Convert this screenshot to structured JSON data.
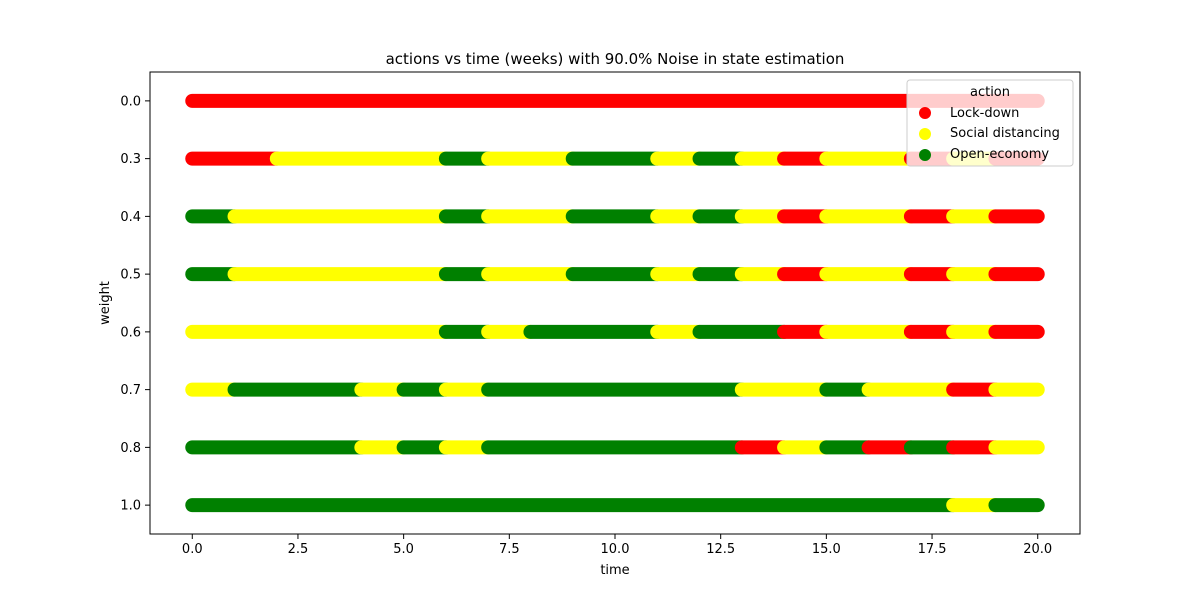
{
  "chart_data": {
    "type": "scatter",
    "title": "actions vs time (weeks) with 90.0% Noise in state estimation",
    "xlabel": "time",
    "ylabel": "weight",
    "xlim": [
      -1.0,
      21.0
    ],
    "x_ticks": [
      "0.0",
      "2.5",
      "5.0",
      "7.5",
      "10.0",
      "12.5",
      "15.0",
      "17.5",
      "20.0"
    ],
    "categories": [
      "0.0",
      "0.3",
      "0.4",
      "0.5",
      "0.6",
      "0.7",
      "0.8",
      "1.0"
    ],
    "grid": false,
    "legend": {
      "title": "action",
      "placement": "top-right",
      "entries": [
        {
          "label": "Lock-down",
          "color": "#ff0000"
        },
        {
          "label": "Social distancing",
          "color": "#ffff00"
        },
        {
          "label": "Open-economy",
          "color": "#008000"
        }
      ]
    },
    "series": [
      {
        "weight": "0.0",
        "segments": [
          {
            "start": 0,
            "end": 20,
            "action": "Lock-down"
          }
        ]
      },
      {
        "weight": "0.3",
        "segments": [
          {
            "start": 0,
            "end": 2,
            "action": "Lock-down"
          },
          {
            "start": 2,
            "end": 6,
            "action": "Social distancing"
          },
          {
            "start": 6,
            "end": 7,
            "action": "Open-economy"
          },
          {
            "start": 7,
            "end": 9,
            "action": "Social distancing"
          },
          {
            "start": 9,
            "end": 11,
            "action": "Open-economy"
          },
          {
            "start": 11,
            "end": 12,
            "action": "Social distancing"
          },
          {
            "start": 12,
            "end": 13,
            "action": "Open-economy"
          },
          {
            "start": 13,
            "end": 14,
            "action": "Social distancing"
          },
          {
            "start": 14,
            "end": 15,
            "action": "Lock-down"
          },
          {
            "start": 15,
            "end": 17,
            "action": "Social distancing"
          },
          {
            "start": 17,
            "end": 18,
            "action": "Lock-down"
          },
          {
            "start": 18,
            "end": 19,
            "action": "Social distancing"
          },
          {
            "start": 19,
            "end": 20,
            "action": "Lock-down"
          }
        ]
      },
      {
        "weight": "0.4",
        "segments": [
          {
            "start": 0,
            "end": 1,
            "action": "Open-economy"
          },
          {
            "start": 1,
            "end": 6,
            "action": "Social distancing"
          },
          {
            "start": 6,
            "end": 7,
            "action": "Open-economy"
          },
          {
            "start": 7,
            "end": 9,
            "action": "Social distancing"
          },
          {
            "start": 9,
            "end": 11,
            "action": "Open-economy"
          },
          {
            "start": 11,
            "end": 12,
            "action": "Social distancing"
          },
          {
            "start": 12,
            "end": 13,
            "action": "Open-economy"
          },
          {
            "start": 13,
            "end": 14,
            "action": "Social distancing"
          },
          {
            "start": 14,
            "end": 15,
            "action": "Lock-down"
          },
          {
            "start": 15,
            "end": 17,
            "action": "Social distancing"
          },
          {
            "start": 17,
            "end": 18,
            "action": "Lock-down"
          },
          {
            "start": 18,
            "end": 19,
            "action": "Social distancing"
          },
          {
            "start": 19,
            "end": 20,
            "action": "Lock-down"
          }
        ]
      },
      {
        "weight": "0.5",
        "segments": [
          {
            "start": 0,
            "end": 1,
            "action": "Open-economy"
          },
          {
            "start": 1,
            "end": 6,
            "action": "Social distancing"
          },
          {
            "start": 6,
            "end": 7,
            "action": "Open-economy"
          },
          {
            "start": 7,
            "end": 9,
            "action": "Social distancing"
          },
          {
            "start": 9,
            "end": 11,
            "action": "Open-economy"
          },
          {
            "start": 11,
            "end": 12,
            "action": "Social distancing"
          },
          {
            "start": 12,
            "end": 13,
            "action": "Open-economy"
          },
          {
            "start": 13,
            "end": 14,
            "action": "Social distancing"
          },
          {
            "start": 14,
            "end": 15,
            "action": "Lock-down"
          },
          {
            "start": 15,
            "end": 17,
            "action": "Social distancing"
          },
          {
            "start": 17,
            "end": 18,
            "action": "Lock-down"
          },
          {
            "start": 18,
            "end": 19,
            "action": "Social distancing"
          },
          {
            "start": 19,
            "end": 20,
            "action": "Lock-down"
          }
        ]
      },
      {
        "weight": "0.6",
        "segments": [
          {
            "start": 0,
            "end": 6,
            "action": "Social distancing"
          },
          {
            "start": 6,
            "end": 7,
            "action": "Open-economy"
          },
          {
            "start": 7,
            "end": 8,
            "action": "Social distancing"
          },
          {
            "start": 8,
            "end": 11,
            "action": "Open-economy"
          },
          {
            "start": 11,
            "end": 12,
            "action": "Social distancing"
          },
          {
            "start": 12,
            "end": 14,
            "action": "Open-economy"
          },
          {
            "start": 14,
            "end": 15,
            "action": "Lock-down"
          },
          {
            "start": 15,
            "end": 17,
            "action": "Social distancing"
          },
          {
            "start": 17,
            "end": 18,
            "action": "Lock-down"
          },
          {
            "start": 18,
            "end": 19,
            "action": "Social distancing"
          },
          {
            "start": 19,
            "end": 20,
            "action": "Lock-down"
          }
        ]
      },
      {
        "weight": "0.7",
        "segments": [
          {
            "start": 0,
            "end": 1,
            "action": "Social distancing"
          },
          {
            "start": 1,
            "end": 4,
            "action": "Open-economy"
          },
          {
            "start": 4,
            "end": 5,
            "action": "Social distancing"
          },
          {
            "start": 5,
            "end": 6,
            "action": "Open-economy"
          },
          {
            "start": 6,
            "end": 7,
            "action": "Social distancing"
          },
          {
            "start": 7,
            "end": 13,
            "action": "Open-economy"
          },
          {
            "start": 13,
            "end": 15,
            "action": "Social distancing"
          },
          {
            "start": 15,
            "end": 16,
            "action": "Open-economy"
          },
          {
            "start": 16,
            "end": 18,
            "action": "Social distancing"
          },
          {
            "start": 18,
            "end": 19,
            "action": "Lock-down"
          },
          {
            "start": 19,
            "end": 20,
            "action": "Social distancing"
          }
        ]
      },
      {
        "weight": "0.8",
        "segments": [
          {
            "start": 0,
            "end": 4,
            "action": "Open-economy"
          },
          {
            "start": 4,
            "end": 5,
            "action": "Social distancing"
          },
          {
            "start": 5,
            "end": 6,
            "action": "Open-economy"
          },
          {
            "start": 6,
            "end": 7,
            "action": "Social distancing"
          },
          {
            "start": 7,
            "end": 13,
            "action": "Open-economy"
          },
          {
            "start": 13,
            "end": 14,
            "action": "Lock-down"
          },
          {
            "start": 14,
            "end": 15,
            "action": "Social distancing"
          },
          {
            "start": 15,
            "end": 16,
            "action": "Open-economy"
          },
          {
            "start": 16,
            "end": 17,
            "action": "Lock-down"
          },
          {
            "start": 17,
            "end": 18,
            "action": "Open-economy"
          },
          {
            "start": 18,
            "end": 19,
            "action": "Lock-down"
          },
          {
            "start": 19,
            "end": 20,
            "action": "Social distancing"
          }
        ]
      },
      {
        "weight": "1.0",
        "segments": [
          {
            "start": 0,
            "end": 18,
            "action": "Open-economy"
          },
          {
            "start": 18,
            "end": 19,
            "action": "Social distancing"
          },
          {
            "start": 19,
            "end": 20,
            "action": "Open-economy"
          }
        ]
      }
    ]
  }
}
